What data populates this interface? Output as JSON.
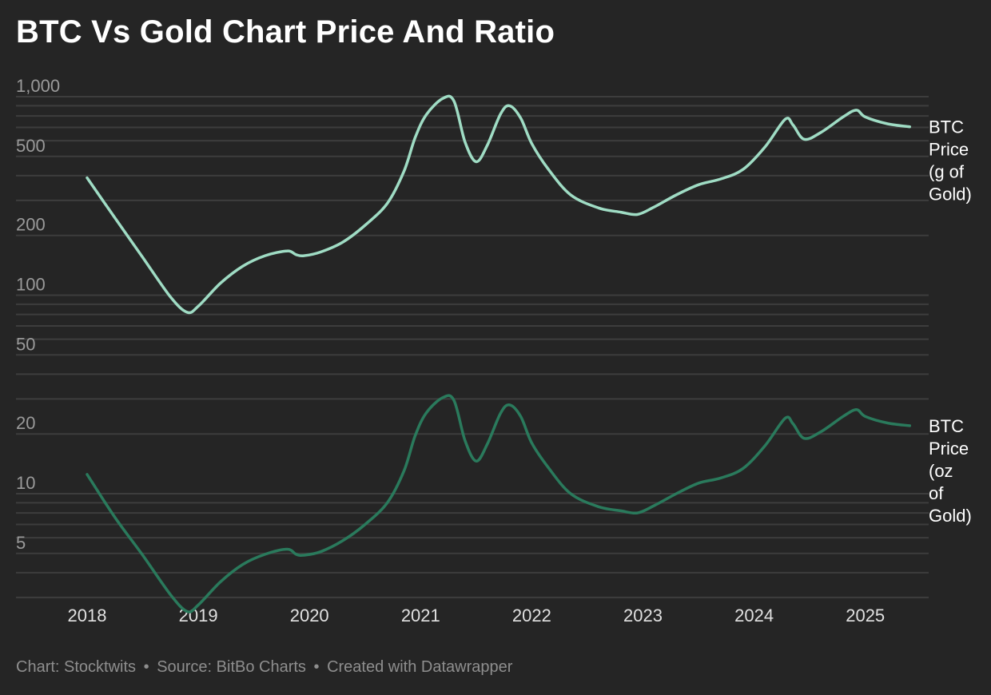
{
  "title": "BTC Vs Gold Chart Price And Ratio",
  "footer": {
    "chart_credit": "Chart: Stocktwits",
    "separator": "•",
    "source": "Source: BitBo Charts",
    "created_with": "Created with Datawrapper"
  },
  "chart_data": {
    "type": "line",
    "y_scale": "log",
    "grid": true,
    "x_ticks": [
      "2018",
      "2019",
      "2020",
      "2021",
      "2022",
      "2023",
      "2024",
      "2025"
    ],
    "y_ticks": [
      {
        "label": "1,000",
        "value": 1000
      },
      {
        "label": "500",
        "value": 500
      },
      {
        "label": "200",
        "value": 200
      },
      {
        "label": "100",
        "value": 100
      },
      {
        "label": "50",
        "value": 50
      },
      {
        "label": "20",
        "value": 20
      },
      {
        "label": "10",
        "value": 10
      },
      {
        "label": "5",
        "value": 5
      }
    ],
    "ylim": [
      3,
      1000
    ],
    "series": [
      {
        "name": "BTC Price (g of Gold)",
        "label_lines": [
          "BTC",
          "Price",
          "(g of",
          "Gold)"
        ],
        "color": "#9fdcc4",
        "points": [
          [
            2018.0,
            390
          ],
          [
            2018.25,
            245
          ],
          [
            2018.5,
            155
          ],
          [
            2018.75,
            98
          ],
          [
            2018.9,
            82
          ],
          [
            2019.0,
            88
          ],
          [
            2019.2,
            115
          ],
          [
            2019.4,
            140
          ],
          [
            2019.6,
            158
          ],
          [
            2019.8,
            167
          ],
          [
            2019.88,
            160
          ],
          [
            2019.95,
            158
          ],
          [
            2020.1,
            165
          ],
          [
            2020.3,
            185
          ],
          [
            2020.5,
            225
          ],
          [
            2020.7,
            290
          ],
          [
            2020.85,
            420
          ],
          [
            2020.95,
            620
          ],
          [
            2021.05,
            810
          ],
          [
            2021.2,
            980
          ],
          [
            2021.3,
            950
          ],
          [
            2021.4,
            590
          ],
          [
            2021.5,
            470
          ],
          [
            2021.6,
            570
          ],
          [
            2021.72,
            820
          ],
          [
            2021.8,
            900
          ],
          [
            2021.9,
            780
          ],
          [
            2022.0,
            580
          ],
          [
            2022.15,
            430
          ],
          [
            2022.35,
            320
          ],
          [
            2022.6,
            275
          ],
          [
            2022.8,
            262
          ],
          [
            2022.95,
            255
          ],
          [
            2023.1,
            278
          ],
          [
            2023.3,
            320
          ],
          [
            2023.5,
            360
          ],
          [
            2023.7,
            385
          ],
          [
            2023.9,
            430
          ],
          [
            2024.1,
            560
          ],
          [
            2024.28,
            770
          ],
          [
            2024.35,
            720
          ],
          [
            2024.45,
            610
          ],
          [
            2024.6,
            660
          ],
          [
            2024.8,
            790
          ],
          [
            2024.92,
            855
          ],
          [
            2025.0,
            790
          ],
          [
            2025.2,
            730
          ],
          [
            2025.4,
            705
          ]
        ]
      },
      {
        "name": "BTC Price (oz of Gold)",
        "label_lines": [
          "BTC",
          "Price",
          "(oz",
          "of",
          "Gold)"
        ],
        "color": "#2a7a5c",
        "points": [
          [
            2018.0,
            12.5
          ],
          [
            2018.25,
            7.6
          ],
          [
            2018.5,
            4.9
          ],
          [
            2018.75,
            3.1
          ],
          [
            2018.9,
            2.55
          ],
          [
            2019.0,
            2.75
          ],
          [
            2019.2,
            3.6
          ],
          [
            2019.4,
            4.4
          ],
          [
            2019.6,
            4.95
          ],
          [
            2019.8,
            5.25
          ],
          [
            2019.88,
            4.95
          ],
          [
            2019.95,
            4.9
          ],
          [
            2020.1,
            5.1
          ],
          [
            2020.3,
            5.8
          ],
          [
            2020.5,
            7.0
          ],
          [
            2020.7,
            9.0
          ],
          [
            2020.85,
            13.0
          ],
          [
            2020.95,
            19.5
          ],
          [
            2021.05,
            25.5
          ],
          [
            2021.2,
            30.5
          ],
          [
            2021.3,
            29.5
          ],
          [
            2021.4,
            18.5
          ],
          [
            2021.5,
            14.6
          ],
          [
            2021.6,
            17.8
          ],
          [
            2021.72,
            25.5
          ],
          [
            2021.8,
            28.0
          ],
          [
            2021.9,
            24.5
          ],
          [
            2022.0,
            18.0
          ],
          [
            2022.15,
            13.5
          ],
          [
            2022.35,
            10.0
          ],
          [
            2022.6,
            8.6
          ],
          [
            2022.8,
            8.2
          ],
          [
            2022.95,
            8.0
          ],
          [
            2023.1,
            8.7
          ],
          [
            2023.3,
            10.0
          ],
          [
            2023.5,
            11.3
          ],
          [
            2023.7,
            12.0
          ],
          [
            2023.9,
            13.4
          ],
          [
            2024.1,
            17.5
          ],
          [
            2024.28,
            24.0
          ],
          [
            2024.35,
            22.5
          ],
          [
            2024.45,
            19.0
          ],
          [
            2024.6,
            20.5
          ],
          [
            2024.8,
            24.5
          ],
          [
            2024.92,
            26.5
          ],
          [
            2025.0,
            24.5
          ],
          [
            2025.2,
            22.7
          ],
          [
            2025.4,
            22.0
          ]
        ]
      }
    ]
  }
}
